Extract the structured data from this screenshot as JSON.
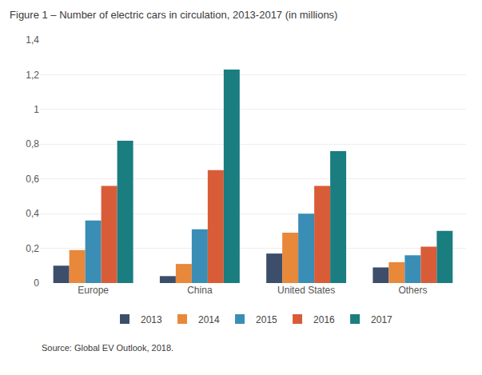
{
  "chart_data": {
    "type": "bar",
    "title": "Figure 1 – Number of electric cars in circulation, 2013-2017 (in millions)",
    "categories": [
      "Europe",
      "China",
      "United States",
      "Others"
    ],
    "series": [
      {
        "name": "2013",
        "color": "#3d4e6b",
        "values": [
          0.1,
          0.04,
          0.17,
          0.09
        ]
      },
      {
        "name": "2014",
        "color": "#e8883a",
        "values": [
          0.19,
          0.11,
          0.29,
          0.12
        ]
      },
      {
        "name": "2015",
        "color": "#3a8db5",
        "values": [
          0.36,
          0.31,
          0.4,
          0.16
        ]
      },
      {
        "name": "2016",
        "color": "#d95c38",
        "values": [
          0.56,
          0.65,
          0.56,
          0.21
        ]
      },
      {
        "name": "2017",
        "color": "#1a7d80",
        "values": [
          0.82,
          1.23,
          0.76,
          0.3
        ]
      }
    ],
    "ylim": [
      0,
      1.4
    ],
    "yticks": [
      0,
      {
        "value": 0.2,
        "label": "0,2"
      },
      {
        "value": 0.4,
        "label": "0,4"
      },
      {
        "value": 0.6,
        "label": "0,6"
      },
      {
        "value": 0.8,
        "label": "0,8"
      },
      1,
      {
        "value": 1.2,
        "label": "1,2"
      },
      {
        "value": 1.4,
        "label": "1,4"
      }
    ],
    "grid": true,
    "legend": "bottom",
    "annotations": [
      "Source: Global EV Outlook, 2018."
    ]
  }
}
